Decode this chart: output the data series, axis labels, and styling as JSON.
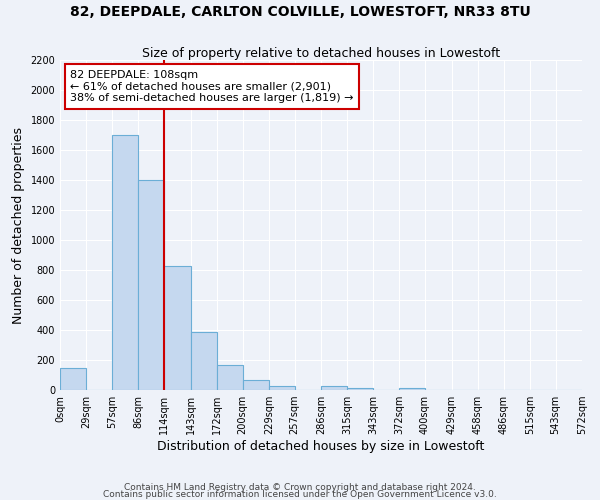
{
  "title": "82, DEEPDALE, CARLTON COLVILLE, LOWESTOFT, NR33 8TU",
  "subtitle": "Size of property relative to detached houses in Lowestoft",
  "xlabel": "Distribution of detached houses by size in Lowestoft",
  "ylabel": "Number of detached properties",
  "bar_edges": [
    0,
    29,
    57,
    86,
    114,
    143,
    172,
    200,
    229,
    257,
    286,
    315,
    343,
    372,
    400,
    429,
    458,
    486,
    515,
    543,
    572
  ],
  "bar_heights": [
    150,
    0,
    1700,
    1400,
    830,
    390,
    165,
    65,
    30,
    0,
    25,
    15,
    0,
    15,
    0,
    0,
    0,
    0,
    0,
    0
  ],
  "bar_color": "#c5d8ef",
  "bar_edge_color": "#6baed6",
  "vline_x": 114,
  "vline_color": "#cc0000",
  "annotation_title": "82 DEEPDALE: 108sqm",
  "annotation_line1": "← 61% of detached houses are smaller (2,901)",
  "annotation_line2": "38% of semi-detached houses are larger (1,819) →",
  "annotation_box_color": "#ffffff",
  "annotation_box_edge": "#cc0000",
  "ylim": [
    0,
    2200
  ],
  "ytick_step": 200,
  "tick_labels": [
    "0sqm",
    "29sqm",
    "57sqm",
    "86sqm",
    "114sqm",
    "143sqm",
    "172sqm",
    "200sqm",
    "229sqm",
    "257sqm",
    "286sqm",
    "315sqm",
    "343sqm",
    "372sqm",
    "400sqm",
    "429sqm",
    "458sqm",
    "486sqm",
    "515sqm",
    "543sqm",
    "572sqm"
  ],
  "footer_line1": "Contains HM Land Registry data © Crown copyright and database right 2024.",
  "footer_line2": "Contains public sector information licensed under the Open Government Licence v3.0.",
  "bg_color": "#eef2f9",
  "plot_bg_color": "#eef2f9",
  "grid_color": "#ffffff",
  "title_fontsize": 10,
  "subtitle_fontsize": 9,
  "axis_label_fontsize": 9,
  "tick_fontsize": 7,
  "footer_fontsize": 6.5,
  "annotation_fontsize": 8
}
